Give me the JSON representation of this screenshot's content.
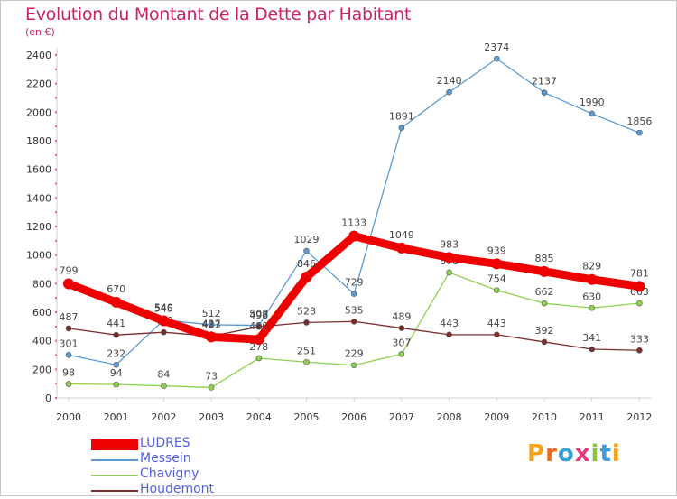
{
  "title": "Evolution du Montant de la Dette par Habitant",
  "subtitle": "(en €)",
  "logo": {
    "letters": [
      "P",
      "r",
      "o",
      "x",
      "i",
      "t",
      "i"
    ],
    "colors": [
      "#f6a11a",
      "#ec6a1f",
      "#3a9fd6",
      "#e43a7d",
      "#8cc63f",
      "#3a9fd6",
      "#f6a11a"
    ]
  },
  "chart_data": {
    "type": "line",
    "x": [
      "2000",
      "2001",
      "2002",
      "2003",
      "2004",
      "2005",
      "2006",
      "2007",
      "2008",
      "2009",
      "2010",
      "2011",
      "2012"
    ],
    "ylim": [
      0,
      2400
    ],
    "yticks": [
      0,
      200,
      400,
      600,
      800,
      1000,
      1200,
      1400,
      1600,
      1800,
      2000,
      2200,
      2400
    ],
    "grid": false,
    "legend": "bottom-left",
    "series": [
      {
        "name": "Messein",
        "color": "#5b9bd5",
        "values": [
          301,
          232,
          545,
          512,
          508,
          1029,
          729,
          1891,
          2140,
          2374,
          2137,
          1990,
          1856
        ]
      },
      {
        "name": "Chavigny",
        "color": "#8fd14f",
        "values": [
          98,
          94,
          84,
          73,
          278,
          251,
          229,
          307,
          878,
          754,
          662,
          630,
          663
        ]
      },
      {
        "name": "Houdemont",
        "color": "#7a2e2e",
        "values": [
          487,
          441,
          460,
          433,
          498,
          528,
          535,
          489,
          443,
          443,
          392,
          341,
          333
        ]
      },
      {
        "name": "LUDRES",
        "color": "#ee0000",
        "values": [
          799,
          670,
          540,
          427,
          410,
          846,
          1133,
          1049,
          983,
          939,
          885,
          829,
          781
        ]
      }
    ],
    "legend_entries": [
      {
        "name": "LUDRES",
        "color": "#ee0000",
        "label_color": "#5560e0",
        "width": 12
      },
      {
        "name": "Messein",
        "color": "#5b9bd5",
        "label_color": "#5560e0",
        "width": 2
      },
      {
        "name": "Chavigny",
        "color": "#8fd14f",
        "label_color": "#5560e0",
        "width": 2
      },
      {
        "name": "Houdemont",
        "color": "#7a2e2e",
        "label_color": "#5560e0",
        "width": 2
      }
    ]
  }
}
